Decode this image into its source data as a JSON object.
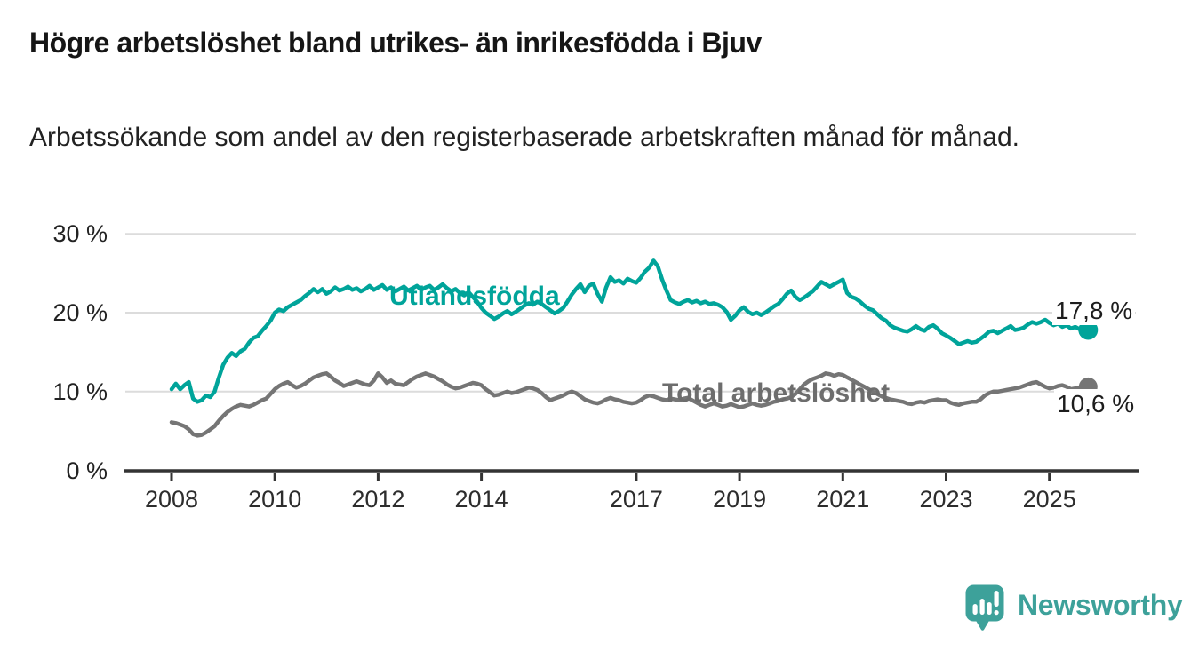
{
  "title": "Högre arbetslöshet bland utrikes- än inrikesfödda i Bjuv",
  "subtitle": "Arbetssökande som andel av den registerbaserade arbetskraften månad för månad.",
  "footer": {
    "brand": "Newsworthy",
    "brand_color": "#3da19a",
    "logo_icon": "newsworthy-speech-bubble-bar-chart-icon"
  },
  "chart_data": {
    "type": "line",
    "title": "Högre arbetslöshet bland utrikes- än inrikesfödda i Bjuv",
    "subtitle": "Arbetssökande som andel av den registerbaserade arbetskraften månad för månad.",
    "unit": "%",
    "grid": "horizontal",
    "legend_position": "inline-labels",
    "colors": {
      "grid": "#dcdcdc",
      "axis": "#333333",
      "text": "#222222"
    },
    "x_axis": {
      "tick_labels": [
        "2008",
        "2010",
        "2012",
        "2014",
        "2017",
        "2019",
        "2021",
        "2023",
        "2025"
      ],
      "tick_years": [
        2008,
        2010,
        2012,
        2014,
        2017,
        2019,
        2021,
        2023,
        2025
      ],
      "range_years": [
        2008,
        2025.83
      ]
    },
    "y_axis": {
      "tick_values": [
        0,
        10,
        20,
        30
      ],
      "tick_labels": [
        "0 %",
        "10 %",
        "20 %",
        "30 %"
      ],
      "ylim": [
        0,
        31.5
      ]
    },
    "series": [
      {
        "name": "Utlandsfödda",
        "color": "#00a49a",
        "end_label": "17,8 %",
        "end_value": 17.8,
        "start_year": 2008,
        "points_per_year": 12,
        "values": [
          10.3,
          11.0,
          10.3,
          10.8,
          11.2,
          9.1,
          8.7,
          8.9,
          9.5,
          9.3,
          10.0,
          11.8,
          13.4,
          14.3,
          14.9,
          14.5,
          15.1,
          15.4,
          16.2,
          16.8,
          17.0,
          17.7,
          18.3,
          19.0,
          20.0,
          20.4,
          20.2,
          20.7,
          21.0,
          21.3,
          21.6,
          22.1,
          22.5,
          23.0,
          22.6,
          23.0,
          22.4,
          22.7,
          23.2,
          22.8,
          23.0,
          23.3,
          22.9,
          23.1,
          22.7,
          23.0,
          23.4,
          22.9,
          23.2,
          23.5,
          22.9,
          23.2,
          22.7,
          23.0,
          23.3,
          22.8,
          23.1,
          23.4,
          22.9,
          23.2,
          23.4,
          22.9,
          23.2,
          23.6,
          23.1,
          22.7,
          23.0,
          22.5,
          22.2,
          22.6,
          22.0,
          21.4,
          20.6,
          20.0,
          19.6,
          19.2,
          19.5,
          19.9,
          20.2,
          19.8,
          20.1,
          20.5,
          20.9,
          21.2,
          21.0,
          21.4,
          21.1,
          20.7,
          20.3,
          19.9,
          20.2,
          20.6,
          21.4,
          22.3,
          23.0,
          23.6,
          22.6,
          23.4,
          23.7,
          22.4,
          21.4,
          23.2,
          24.5,
          23.9,
          24.1,
          23.7,
          24.3,
          24.0,
          23.8,
          24.4,
          25.2,
          25.7,
          26.6,
          25.9,
          24.2,
          22.8,
          21.6,
          21.3,
          21.1,
          21.4,
          21.6,
          21.3,
          21.5,
          21.2,
          21.4,
          21.1,
          21.2,
          21.0,
          20.7,
          20.1,
          19.1,
          19.6,
          20.3,
          20.7,
          20.1,
          19.8,
          20.0,
          19.7,
          20.0,
          20.4,
          20.8,
          21.1,
          21.7,
          22.4,
          22.8,
          22.0,
          21.6,
          21.9,
          22.3,
          22.7,
          23.3,
          23.9,
          23.6,
          23.3,
          23.6,
          23.9,
          24.2,
          22.5,
          22.0,
          21.8,
          21.4,
          20.9,
          20.5,
          20.3,
          19.8,
          19.3,
          19.0,
          18.4,
          18.1,
          17.9,
          17.7,
          17.6,
          17.9,
          18.3,
          17.9,
          17.7,
          18.2,
          18.4,
          18.0,
          17.4,
          17.1,
          16.8,
          16.4,
          16.0,
          16.2,
          16.4,
          16.2,
          16.3,
          16.7,
          17.1,
          17.6,
          17.7,
          17.4,
          17.7,
          18.0,
          18.3,
          17.8,
          17.9,
          18.1,
          18.5,
          18.8,
          18.6,
          18.8,
          19.1,
          18.7,
          18.4,
          18.6,
          18.2,
          18.4,
          18.0,
          18.2,
          17.9,
          18.0,
          17.8
        ]
      },
      {
        "name": "Total arbetslöshet",
        "color": "#757575",
        "end_label": "10,6 %",
        "end_value": 10.6,
        "start_year": 2008,
        "points_per_year": 12,
        "values": [
          6.1,
          6.0,
          5.8,
          5.6,
          5.2,
          4.6,
          4.4,
          4.5,
          4.8,
          5.2,
          5.6,
          6.3,
          6.9,
          7.4,
          7.8,
          8.1,
          8.3,
          8.2,
          8.1,
          8.3,
          8.6,
          8.9,
          9.1,
          9.7,
          10.3,
          10.7,
          11.0,
          11.2,
          10.8,
          10.5,
          10.7,
          11.0,
          11.4,
          11.8,
          12.0,
          12.2,
          12.3,
          11.9,
          11.4,
          11.1,
          10.7,
          10.9,
          11.1,
          11.3,
          11.1,
          10.9,
          10.8,
          11.4,
          12.3,
          11.8,
          11.1,
          11.4,
          11.0,
          10.9,
          10.8,
          11.2,
          11.6,
          11.9,
          12.1,
          12.3,
          12.1,
          11.9,
          11.6,
          11.3,
          10.9,
          10.6,
          10.4,
          10.5,
          10.7,
          10.9,
          11.1,
          11.0,
          10.8,
          10.3,
          9.9,
          9.5,
          9.6,
          9.8,
          10.0,
          9.8,
          9.9,
          10.1,
          10.3,
          10.5,
          10.4,
          10.2,
          9.8,
          9.3,
          8.9,
          9.1,
          9.3,
          9.5,
          9.8,
          10.0,
          9.8,
          9.4,
          9.0,
          8.8,
          8.6,
          8.5,
          8.7,
          9.0,
          9.2,
          9.0,
          8.9,
          8.7,
          8.6,
          8.5,
          8.6,
          8.9,
          9.3,
          9.5,
          9.4,
          9.2,
          9.0,
          8.9,
          9.1,
          9.0,
          8.9,
          9.1,
          9.2,
          8.9,
          8.6,
          8.3,
          8.1,
          8.3,
          8.5,
          8.3,
          8.1,
          8.2,
          8.4,
          8.2,
          8.0,
          8.1,
          8.3,
          8.5,
          8.3,
          8.2,
          8.3,
          8.5,
          8.7,
          8.8,
          9.0,
          9.1,
          9.3,
          9.7,
          10.3,
          10.9,
          11.3,
          11.6,
          11.8,
          12.0,
          12.3,
          12.2,
          12.0,
          12.2,
          12.1,
          11.8,
          11.5,
          11.2,
          10.9,
          10.6,
          10.3,
          10.0,
          9.7,
          9.4,
          9.2,
          9.0,
          8.9,
          8.8,
          8.7,
          8.5,
          8.4,
          8.6,
          8.7,
          8.6,
          8.8,
          8.9,
          9.0,
          8.9,
          8.9,
          8.6,
          8.4,
          8.3,
          8.5,
          8.6,
          8.7,
          8.7,
          9.0,
          9.5,
          9.8,
          10.0,
          10.0,
          10.1,
          10.2,
          10.3,
          10.4,
          10.5,
          10.7,
          10.9,
          11.1,
          11.2,
          10.9,
          10.6,
          10.4,
          10.5,
          10.7,
          10.8,
          10.6,
          10.3,
          10.4,
          10.4,
          10.5,
          10.6
        ]
      }
    ]
  }
}
